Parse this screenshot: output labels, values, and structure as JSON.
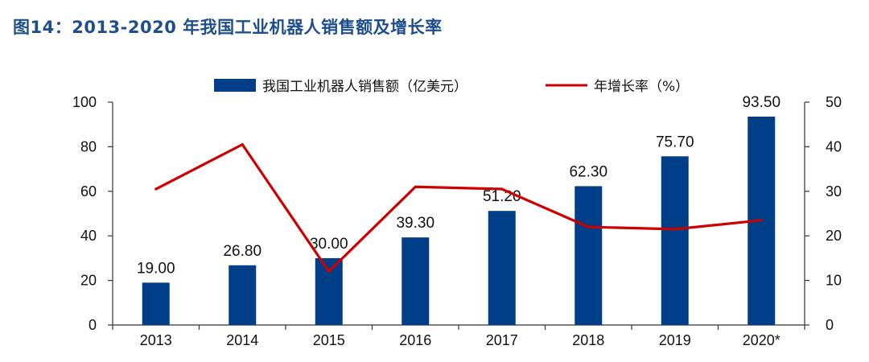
{
  "figure_title": "图14：2013-2020 年我国工业机器人销售额及增长率",
  "chart_data": {
    "type": "bar",
    "categories": [
      "2013",
      "2014",
      "2015",
      "2016",
      "2017",
      "2018",
      "2019",
      "2020*"
    ],
    "series": [
      {
        "name": "我国工业机器人销售额（亿美元）",
        "type": "bar",
        "axis": "left",
        "color": "#003f87",
        "values": [
          19.0,
          26.8,
          30.0,
          39.3,
          51.2,
          62.3,
          75.7,
          93.5
        ],
        "data_labels": [
          "19.00",
          "26.80",
          "30.00",
          "39.30",
          "51.20",
          "62.30",
          "75.70",
          "93.50"
        ]
      },
      {
        "name": "年增长率（%）",
        "type": "line",
        "axis": "right",
        "color": "#cc0000",
        "values": [
          30.5,
          40.5,
          12.0,
          31.0,
          30.5,
          22.0,
          21.5,
          23.5
        ]
      }
    ],
    "ylim_left": [
      0,
      100
    ],
    "yticks_left": [
      "0",
      "20",
      "40",
      "60",
      "80",
      "100"
    ],
    "ylim_right": [
      0,
      50
    ],
    "yticks_right": [
      "0",
      "10",
      "20",
      "30",
      "40",
      "50"
    ],
    "grid": false,
    "legend_position": "top"
  }
}
